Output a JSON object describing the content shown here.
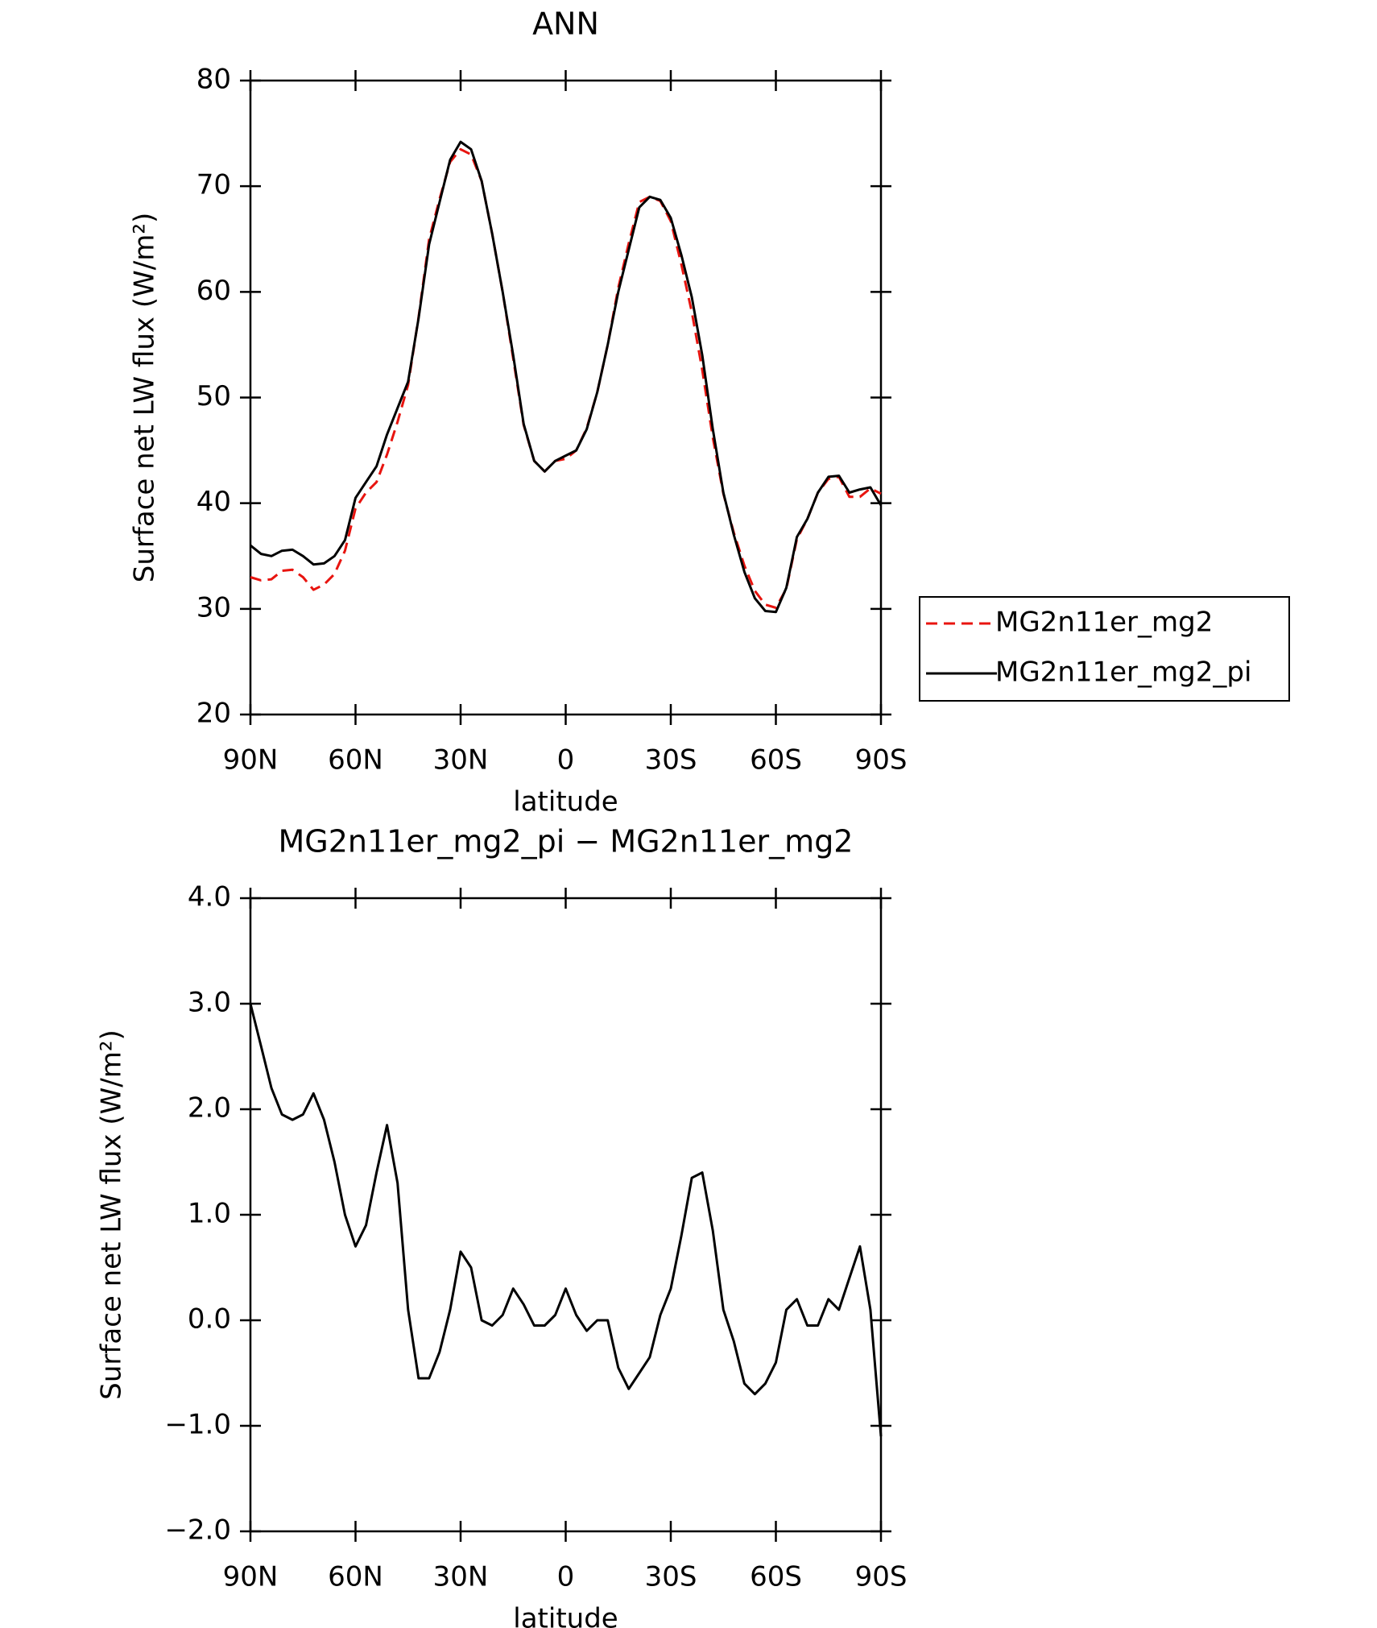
{
  "chart_data": [
    {
      "type": "line",
      "title": "ANN",
      "x_label": "latitude",
      "y_label": "Surface net LW flux (W/m²)",
      "x": [
        90,
        87,
        84,
        81,
        78,
        75,
        72,
        69,
        66,
        63,
        60,
        57,
        54,
        51,
        48,
        45,
        42,
        39,
        36,
        33,
        30,
        27,
        24,
        21,
        18,
        15,
        12,
        9,
        6,
        3,
        0,
        -3,
        -6,
        -9,
        -12,
        -15,
        -18,
        -21,
        -24,
        -27,
        -30,
        -33,
        -36,
        -39,
        -42,
        -45,
        -48,
        -51,
        -54,
        -57,
        -60,
        -63,
        -66,
        -69,
        -72,
        -75,
        -78,
        -81,
        -84,
        -87,
        -90
      ],
      "series": [
        {
          "name": "MG2n11er_mg2",
          "color": "#e8140f",
          "line_style": "dashed",
          "values": [
            33.0,
            32.7,
            32.8,
            33.6,
            33.7,
            33.0,
            31.8,
            32.3,
            33.3,
            35.5,
            39.5,
            41.0,
            42.0,
            44.6,
            47.7,
            51.2,
            57.6,
            65.0,
            68.8,
            72.3,
            73.5,
            73.0,
            70.5,
            65.5,
            60.0,
            53.7,
            47.4,
            44.0,
            43.0,
            44.0,
            44.2,
            45.0,
            47.1,
            50.5,
            55.0,
            60.4,
            64.6,
            68.5,
            69.0,
            68.6,
            66.7,
            62.6,
            58.1,
            52.6,
            46.2,
            40.9,
            37.2,
            34.1,
            31.7,
            30.4,
            30.1,
            31.9,
            36.6,
            38.5,
            41.0,
            42.3,
            42.5,
            40.6,
            40.6,
            41.4,
            40.9
          ]
        },
        {
          "name": "MG2n11er_mg2_pi",
          "color": "#000000",
          "line_style": "solid",
          "values": [
            36.0,
            35.2,
            35.0,
            35.5,
            35.6,
            35.0,
            34.2,
            34.3,
            35.0,
            36.5,
            40.5,
            42.0,
            43.5,
            46.5,
            49.0,
            51.5,
            57.5,
            64.5,
            68.5,
            72.5,
            74.2,
            73.5,
            70.5,
            65.5,
            60.0,
            54.0,
            47.5,
            44.0,
            43.0,
            44.0,
            44.5,
            45.0,
            47.0,
            50.5,
            55.0,
            60.0,
            64.0,
            68.0,
            69.0,
            68.7,
            67.0,
            63.5,
            59.5,
            54.0,
            47.0,
            41.0,
            37.0,
            33.5,
            31.0,
            29.8,
            29.7,
            32.0,
            36.8,
            38.5,
            41.0,
            42.5,
            42.6,
            41.0,
            41.3,
            41.5,
            39.8
          ]
        }
      ],
      "xlim": [
        90,
        -90
      ],
      "xticks": [
        {
          "value": 90,
          "label": "90N"
        },
        {
          "value": 60,
          "label": "60N"
        },
        {
          "value": 30,
          "label": "30N"
        },
        0,
        {
          "value": -30,
          "label": "30S"
        },
        {
          "value": -60,
          "label": "60S"
        },
        {
          "value": -90,
          "label": "90S"
        }
      ],
      "ylim": [
        20,
        80
      ],
      "yticks": [
        20,
        30,
        40,
        50,
        60,
        70,
        80
      ],
      "legend": "right"
    },
    {
      "type": "line",
      "title": "MG2n11er_mg2_pi − MG2n11er_mg2",
      "x_label": "latitude",
      "y_label": "Surface net LW flux (W/m²)",
      "x": [
        90,
        87,
        84,
        81,
        78,
        75,
        72,
        69,
        66,
        63,
        60,
        57,
        54,
        51,
        48,
        45,
        42,
        39,
        36,
        33,
        30,
        27,
        24,
        21,
        18,
        15,
        12,
        9,
        6,
        3,
        0,
        -3,
        -6,
        -9,
        -12,
        -15,
        -18,
        -21,
        -24,
        -27,
        -30,
        -33,
        -36,
        -39,
        -42,
        -45,
        -48,
        -51,
        -54,
        -57,
        -60,
        -63,
        -66,
        -69,
        -72,
        -75,
        -78,
        -81,
        -84,
        -87,
        -90
      ],
      "color": "#000000",
      "values": [
        3.0,
        2.6,
        2.2,
        1.95,
        1.9,
        1.95,
        2.15,
        1.9,
        1.5,
        1.0,
        0.7,
        0.9,
        1.4,
        1.85,
        1.3,
        0.1,
        -0.55,
        -0.55,
        -0.3,
        0.1,
        0.65,
        0.5,
        0.0,
        -0.05,
        0.05,
        0.3,
        0.15,
        -0.05,
        -0.05,
        0.05,
        0.3,
        0.05,
        -0.1,
        0.0,
        0.0,
        -0.45,
        -0.65,
        -0.5,
        -0.35,
        0.05,
        0.3,
        0.8,
        1.35,
        1.4,
        0.85,
        0.1,
        -0.2,
        -0.6,
        -0.7,
        -0.6,
        -0.4,
        0.1,
        0.2,
        -0.05,
        -0.05,
        0.2,
        0.1,
        0.4,
        0.7,
        0.1,
        -1.1
      ],
      "xlim": [
        90,
        -90
      ],
      "xticks": [
        {
          "value": 90,
          "label": "90N"
        },
        {
          "value": 60,
          "label": "60N"
        },
        {
          "value": 30,
          "label": "30N"
        },
        0,
        {
          "value": -30,
          "label": "30S"
        },
        {
          "value": -60,
          "label": "60S"
        },
        {
          "value": -90,
          "label": "90S"
        }
      ],
      "ylim": [
        -2,
        4
      ],
      "yticks": [
        {
          "value": -2,
          "label": "−2.0"
        },
        {
          "value": -1,
          "label": "−1.0"
        },
        {
          "value": 0,
          "label": "0.0"
        },
        {
          "value": 1,
          "label": "1.0"
        },
        {
          "value": 2,
          "label": "2.0"
        },
        {
          "value": 3,
          "label": "3.0"
        },
        {
          "value": 4,
          "label": "4.0"
        }
      ]
    }
  ]
}
